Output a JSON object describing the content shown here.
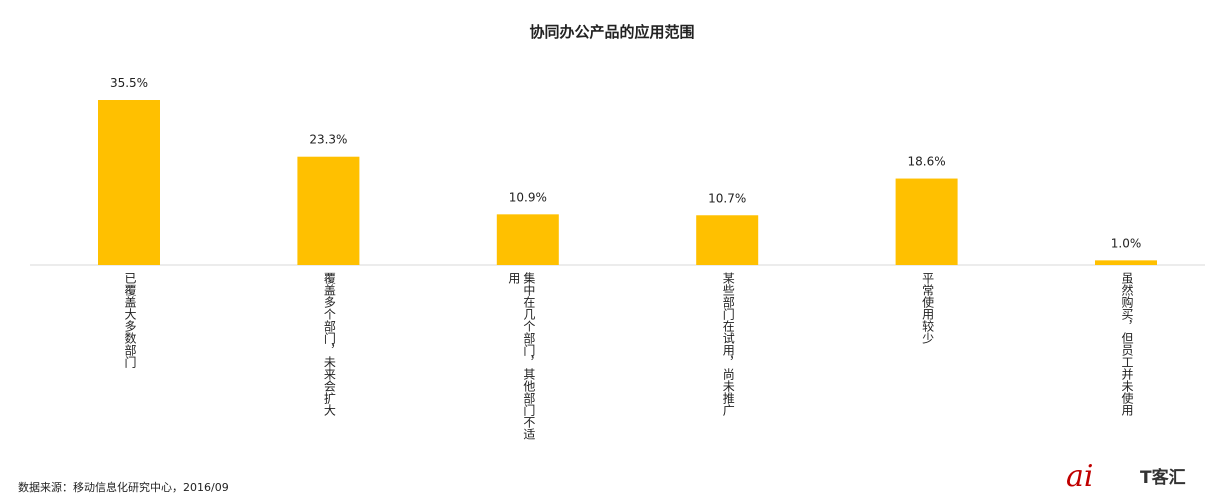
{
  "chart_data": {
    "type": "bar",
    "title": "协同办公产品的应用范围",
    "categories": [
      "已覆盖大多数部门",
      "覆盖多个部门，未来会扩大",
      "集中在几个部门，其他部门不适用",
      "某些部门在试用，尚未推广",
      "平常使用较少",
      "虽然购买，但员工并未使用"
    ],
    "values": [
      35.5,
      23.3,
      10.9,
      10.7,
      18.6,
      1.0
    ],
    "value_labels": [
      "35.5%",
      "23.3%",
      "10.9%",
      "10.7%",
      "18.6%",
      "1.0%"
    ],
    "color": "#ffc000",
    "source": "数据来源：移动信息化研究中心，2016/09"
  },
  "logo": "T客汇"
}
